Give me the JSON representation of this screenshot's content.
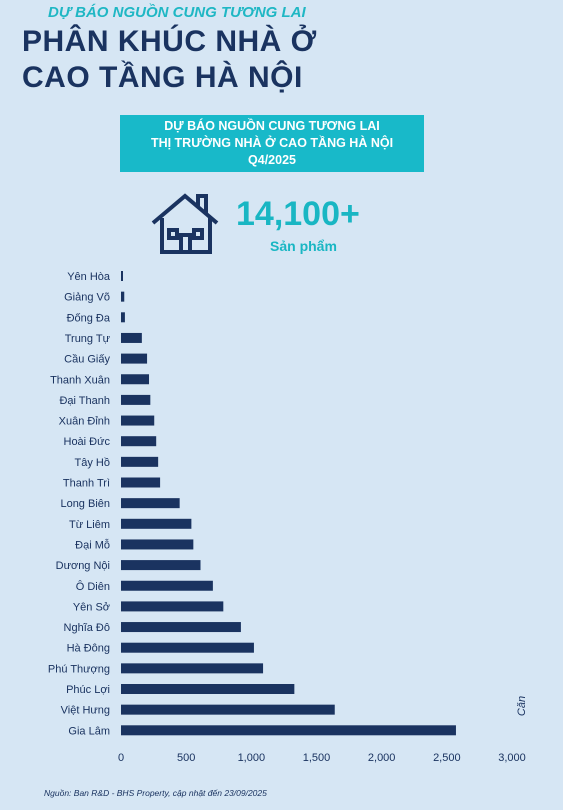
{
  "header": {
    "subtitle": "DỰ BÁO NGUỒN CUNG TƯƠNG LAI",
    "title_line1": "PHÂN KHÚC NHÀ Ở",
    "title_line2": "CAO TẦNG HÀ NỘI"
  },
  "banner": {
    "line1": "DỰ BÁO NGUỒN CUNG TƯƠNG LAI",
    "line2": "THỊ TRƯỜNG NHÀ Ở CAO TẦNG HÀ NỘI",
    "line3": "Q4/2025"
  },
  "highlight": {
    "value": "14,100+",
    "unit": "Sản phẩm",
    "icon": "house-icon"
  },
  "colors": {
    "background": "#d6e6f4",
    "bar": "#1a3360",
    "accent": "#18b9c9",
    "text": "#1a3360"
  },
  "chart_data": {
    "type": "bar",
    "orientation": "horizontal",
    "categories": [
      "Yên Hòa",
      "Giảng Võ",
      "Đống Đa",
      "Trung Tự",
      "Cầu Giấy",
      "Thanh Xuân",
      "Đại Thanh",
      "Xuân Đỉnh",
      "Hoài Đức",
      "Tây Hồ",
      "Thanh Trì",
      "Long Biên",
      "Từ Liêm",
      "Đại Mỗ",
      "Dương Nội",
      "Ô Diên",
      "Yên Sở",
      "Nghĩa Đô",
      "Hà Đông",
      "Phú Thượng",
      "Phúc Lợi",
      "Việt Hưng",
      "Gia Lâm"
    ],
    "values": [
      15,
      25,
      30,
      160,
      200,
      215,
      225,
      255,
      270,
      285,
      300,
      450,
      540,
      555,
      610,
      705,
      785,
      920,
      1020,
      1090,
      1330,
      1640,
      2570
    ],
    "xlim": [
      0,
      3000
    ],
    "xticks": [
      "0",
      "500",
      "1,000",
      "1,500",
      "2,000",
      "2,500",
      "3,000"
    ],
    "ylabel": "Căn",
    "grid": false
  },
  "footer": {
    "source": "Nguồn: Ban R&D - BHS Property, cập nhật đến 23/09/2025"
  }
}
